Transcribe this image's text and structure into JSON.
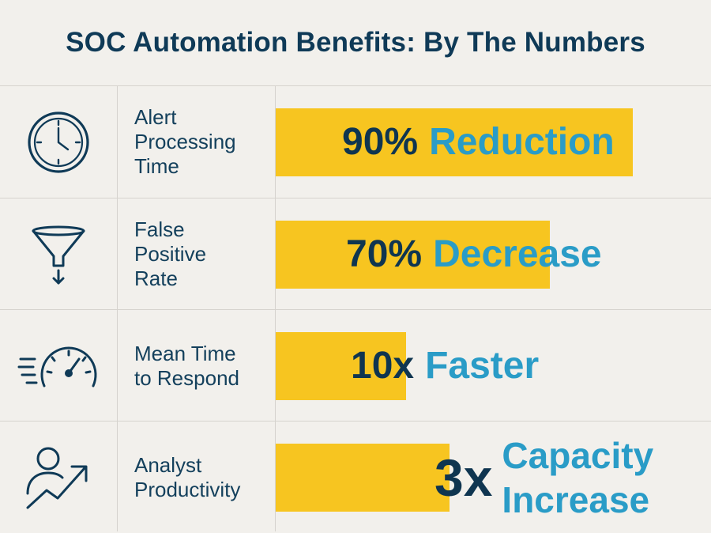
{
  "title": "SOC Automation Benefits: By The Numbers",
  "colors": {
    "bar": "#f7c520",
    "value_dark": "#0f3550",
    "value_accent": "#2a9cc7",
    "background": "#f2f0ec"
  },
  "chart_data": {
    "type": "bar",
    "title": "SOC Automation Benefits: By The Numbers",
    "orientation": "horizontal",
    "categories": [
      "Alert Processing Time",
      "False Positive Rate",
      "Mean Time to Respond",
      "Analyst Productivity"
    ],
    "values": [
      90,
      70,
      10,
      3
    ],
    "value_labels": [
      "90% Reduction",
      "70% Decrease",
      "10x Faster",
      "3x Capacity Increase"
    ],
    "bar_fill_fractions": [
      0.82,
      0.63,
      0.3,
      0.4
    ]
  },
  "rows": [
    {
      "icon": "clock-icon",
      "label": "Alert\nProcessing\nTime",
      "num": "90%",
      "unit": "Reduction"
    },
    {
      "icon": "funnel-icon",
      "label": "False\nPositive\nRate",
      "num": "70%",
      "unit": "Decrease"
    },
    {
      "icon": "speedometer-icon",
      "label": "Mean Time\nto Respond",
      "num": "10x",
      "unit": "Faster"
    },
    {
      "icon": "user-growth-icon",
      "label": "Analyst\nProductivity",
      "num": "3x",
      "unit1": "Capacity",
      "unit2": "Increase"
    }
  ]
}
